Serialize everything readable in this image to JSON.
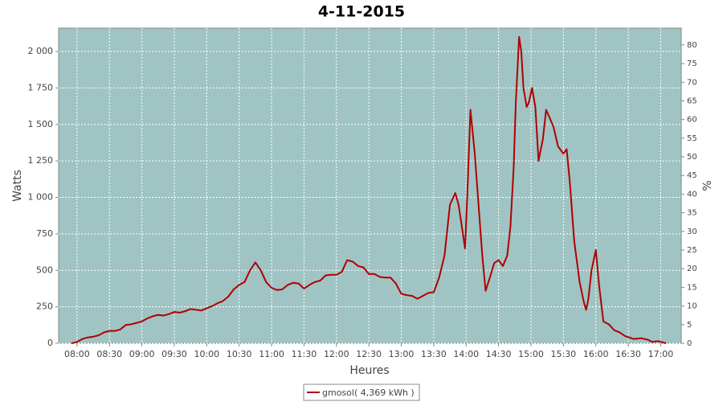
{
  "chart_data": {
    "type": "line",
    "title": "4-11-2015",
    "x_label": "Heures",
    "y_label": "Watts",
    "y2_label": "%",
    "x": [
      "07:55",
      "08:00",
      "08:05",
      "08:10",
      "08:15",
      "08:20",
      "08:25",
      "08:30",
      "08:35",
      "08:40",
      "08:45",
      "08:50",
      "08:55",
      "09:00",
      "09:05",
      "09:10",
      "09:15",
      "09:20",
      "09:25",
      "09:30",
      "09:35",
      "09:40",
      "09:45",
      "09:50",
      "09:55",
      "10:00",
      "10:05",
      "10:10",
      "10:15",
      "10:20",
      "10:25",
      "10:30",
      "10:35",
      "10:40",
      "10:45",
      "10:50",
      "10:55",
      "11:00",
      "11:05",
      "11:10",
      "11:15",
      "11:20",
      "11:25",
      "11:30",
      "11:35",
      "11:40",
      "11:45",
      "11:50",
      "11:55",
      "12:00",
      "12:05",
      "12:10",
      "12:15",
      "12:20",
      "12:25",
      "12:30",
      "12:35",
      "12:40",
      "12:45",
      "12:50",
      "12:55",
      "13:00",
      "13:05",
      "13:10",
      "13:15",
      "13:20",
      "13:25",
      "13:30",
      "13:35",
      "13:40",
      "13:45",
      "13:50",
      "13:53",
      "13:56",
      "13:59",
      "14:01",
      "14:04",
      "14:08",
      "14:11",
      "14:15",
      "14:18",
      "14:22",
      "14:26",
      "14:30",
      "14:34",
      "14:38",
      "14:41",
      "14:44",
      "14:46",
      "14:49",
      "14:51",
      "14:53",
      "14:56",
      "14:58",
      "15:01",
      "15:04",
      "15:07",
      "15:11",
      "15:14",
      "15:17",
      "15:21",
      "15:25",
      "15:30",
      "15:33",
      "15:36",
      "15:40",
      "15:45",
      "15:49",
      "15:51",
      "15:53",
      "15:56",
      "16:00",
      "16:03",
      "16:07",
      "16:12",
      "16:17",
      "16:22",
      "16:27",
      "16:35",
      "16:42",
      "16:48",
      "16:52",
      "16:58",
      "17:05"
    ],
    "series": [
      {
        "name": "gmosol( 4,369 kWh )",
        "color": "#b00000",
        "values": [
          0,
          10,
          30,
          40,
          45,
          55,
          75,
          85,
          85,
          95,
          125,
          130,
          140,
          150,
          170,
          185,
          195,
          190,
          200,
          215,
          210,
          220,
          235,
          230,
          225,
          240,
          255,
          275,
          290,
          320,
          370,
          400,
          420,
          500,
          555,
          500,
          420,
          380,
          365,
          370,
          400,
          415,
          410,
          375,
          400,
          420,
          430,
          465,
          470,
          470,
          490,
          570,
          560,
          530,
          520,
          475,
          475,
          455,
          450,
          450,
          410,
          340,
          330,
          325,
          305,
          325,
          345,
          350,
          450,
          600,
          950,
          1030,
          950,
          800,
          650,
          1000,
          1600,
          1300,
          1000,
          600,
          360,
          450,
          550,
          570,
          530,
          600,
          800,
          1200,
          1650,
          2100,
          2000,
          1750,
          1620,
          1650,
          1750,
          1620,
          1250,
          1400,
          1600,
          1550,
          1480,
          1350,
          1300,
          1330,
          1100,
          700,
          420,
          280,
          230,
          300,
          500,
          640,
          400,
          150,
          130,
          90,
          75,
          50,
          30,
          35,
          25,
          10,
          15,
          0
        ]
      }
    ],
    "xlim": [
      "07:43",
      "17:19"
    ],
    "xticks": [
      "08:00",
      "08:30",
      "09:00",
      "09:30",
      "10:00",
      "10:30",
      "11:00",
      "11:30",
      "12:00",
      "12:30",
      "13:00",
      "13:30",
      "14:00",
      "14:30",
      "15:00",
      "15:30",
      "16:00",
      "16:30",
      "17:00"
    ],
    "ylim": [
      0,
      2160
    ],
    "yticks": [
      0,
      250,
      500,
      750,
      {
        "value": 1000,
        "label": "1 000"
      },
      {
        "value": 1250,
        "label": "1 250"
      },
      {
        "value": 1500,
        "label": "1 500"
      },
      {
        "value": 1750,
        "label": "1 750"
      },
      {
        "value": 2000,
        "label": "2 000"
      }
    ],
    "y2lim": [
      0,
      84.5
    ],
    "y2ticks": [
      0,
      5,
      10,
      15,
      20,
      25,
      30,
      35,
      40,
      45,
      50,
      55,
      60,
      65,
      70,
      75,
      80
    ],
    "grid": true
  }
}
